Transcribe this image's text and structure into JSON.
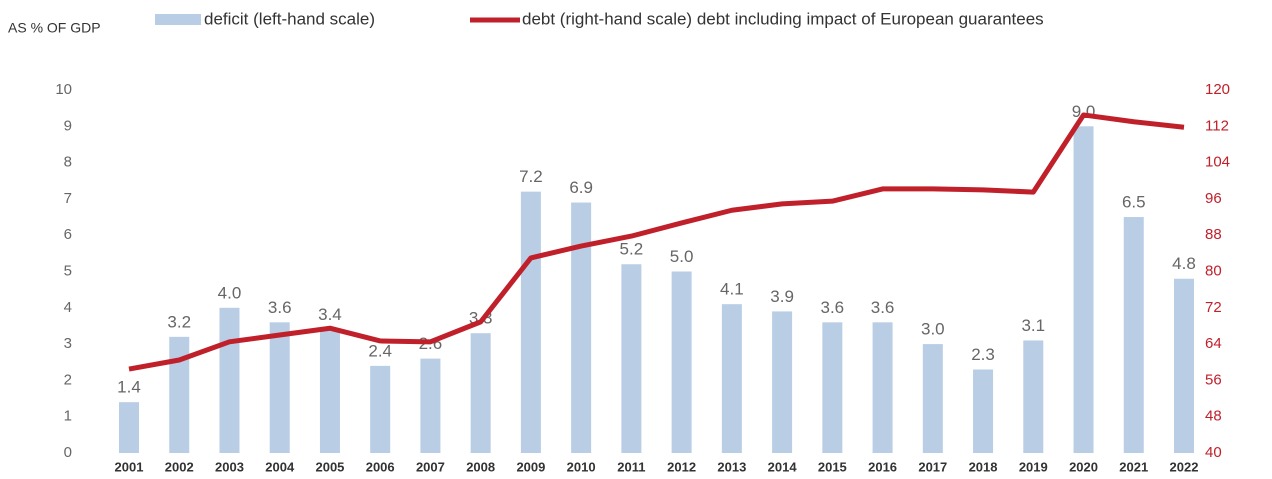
{
  "chart_data": {
    "type": "bar_line",
    "subtitle": "AS % OF GDP",
    "categories": [
      "2001",
      "2002",
      "2003",
      "2004",
      "2005",
      "2006",
      "2007",
      "2008",
      "2009",
      "2010",
      "2011",
      "2012",
      "2013",
      "2014",
      "2015",
      "2016",
      "2017",
      "2018",
      "2019",
      "2020",
      "2021",
      "2022"
    ],
    "series": [
      {
        "name": "deficit (left-hand scale)",
        "color": "#b9cde5",
        "type": "bar",
        "axis": "y",
        "values": [
          1.4,
          3.2,
          4.0,
          3.6,
          3.4,
          2.4,
          2.6,
          3.3,
          7.2,
          6.9,
          5.2,
          5.0,
          4.1,
          3.9,
          3.6,
          3.6,
          3.0,
          2.3,
          3.1,
          9.0,
          6.5,
          4.8
        ],
        "value_labels": [
          "1.4",
          "3.2",
          "4.0",
          "3.6",
          "3.4",
          "2.4",
          "2.6",
          "3.3",
          "7.2",
          "6.9",
          "5.2",
          "5.0",
          "4.1",
          "3.9",
          "3.6",
          "3.6",
          "3.0",
          "2.3",
          "3.1",
          "9.0",
          "6.5",
          "4.8"
        ]
      },
      {
        "name": "debt (right-hand scale) debt including impact of European guarantees",
        "color": "#c0202a",
        "type": "line",
        "axis": "y2",
        "values": [
          58.5,
          60.5,
          64.5,
          66,
          67.5,
          64.7,
          64.5,
          68.9,
          83,
          85.6,
          87.8,
          90.7,
          93.5,
          94.9,
          95.5,
          98.2,
          98.2,
          98,
          97.5,
          114.5,
          113,
          111.8
        ]
      }
    ],
    "ylim": [
      0,
      10
    ],
    "yticks": [
      0,
      1,
      2,
      3,
      4,
      5,
      6,
      7,
      8,
      9,
      10
    ],
    "y2lim": [
      40,
      120
    ],
    "y2ticks": [
      40,
      48,
      56,
      64,
      72,
      80,
      88,
      96,
      104,
      112,
      120
    ],
    "grid": false
  }
}
